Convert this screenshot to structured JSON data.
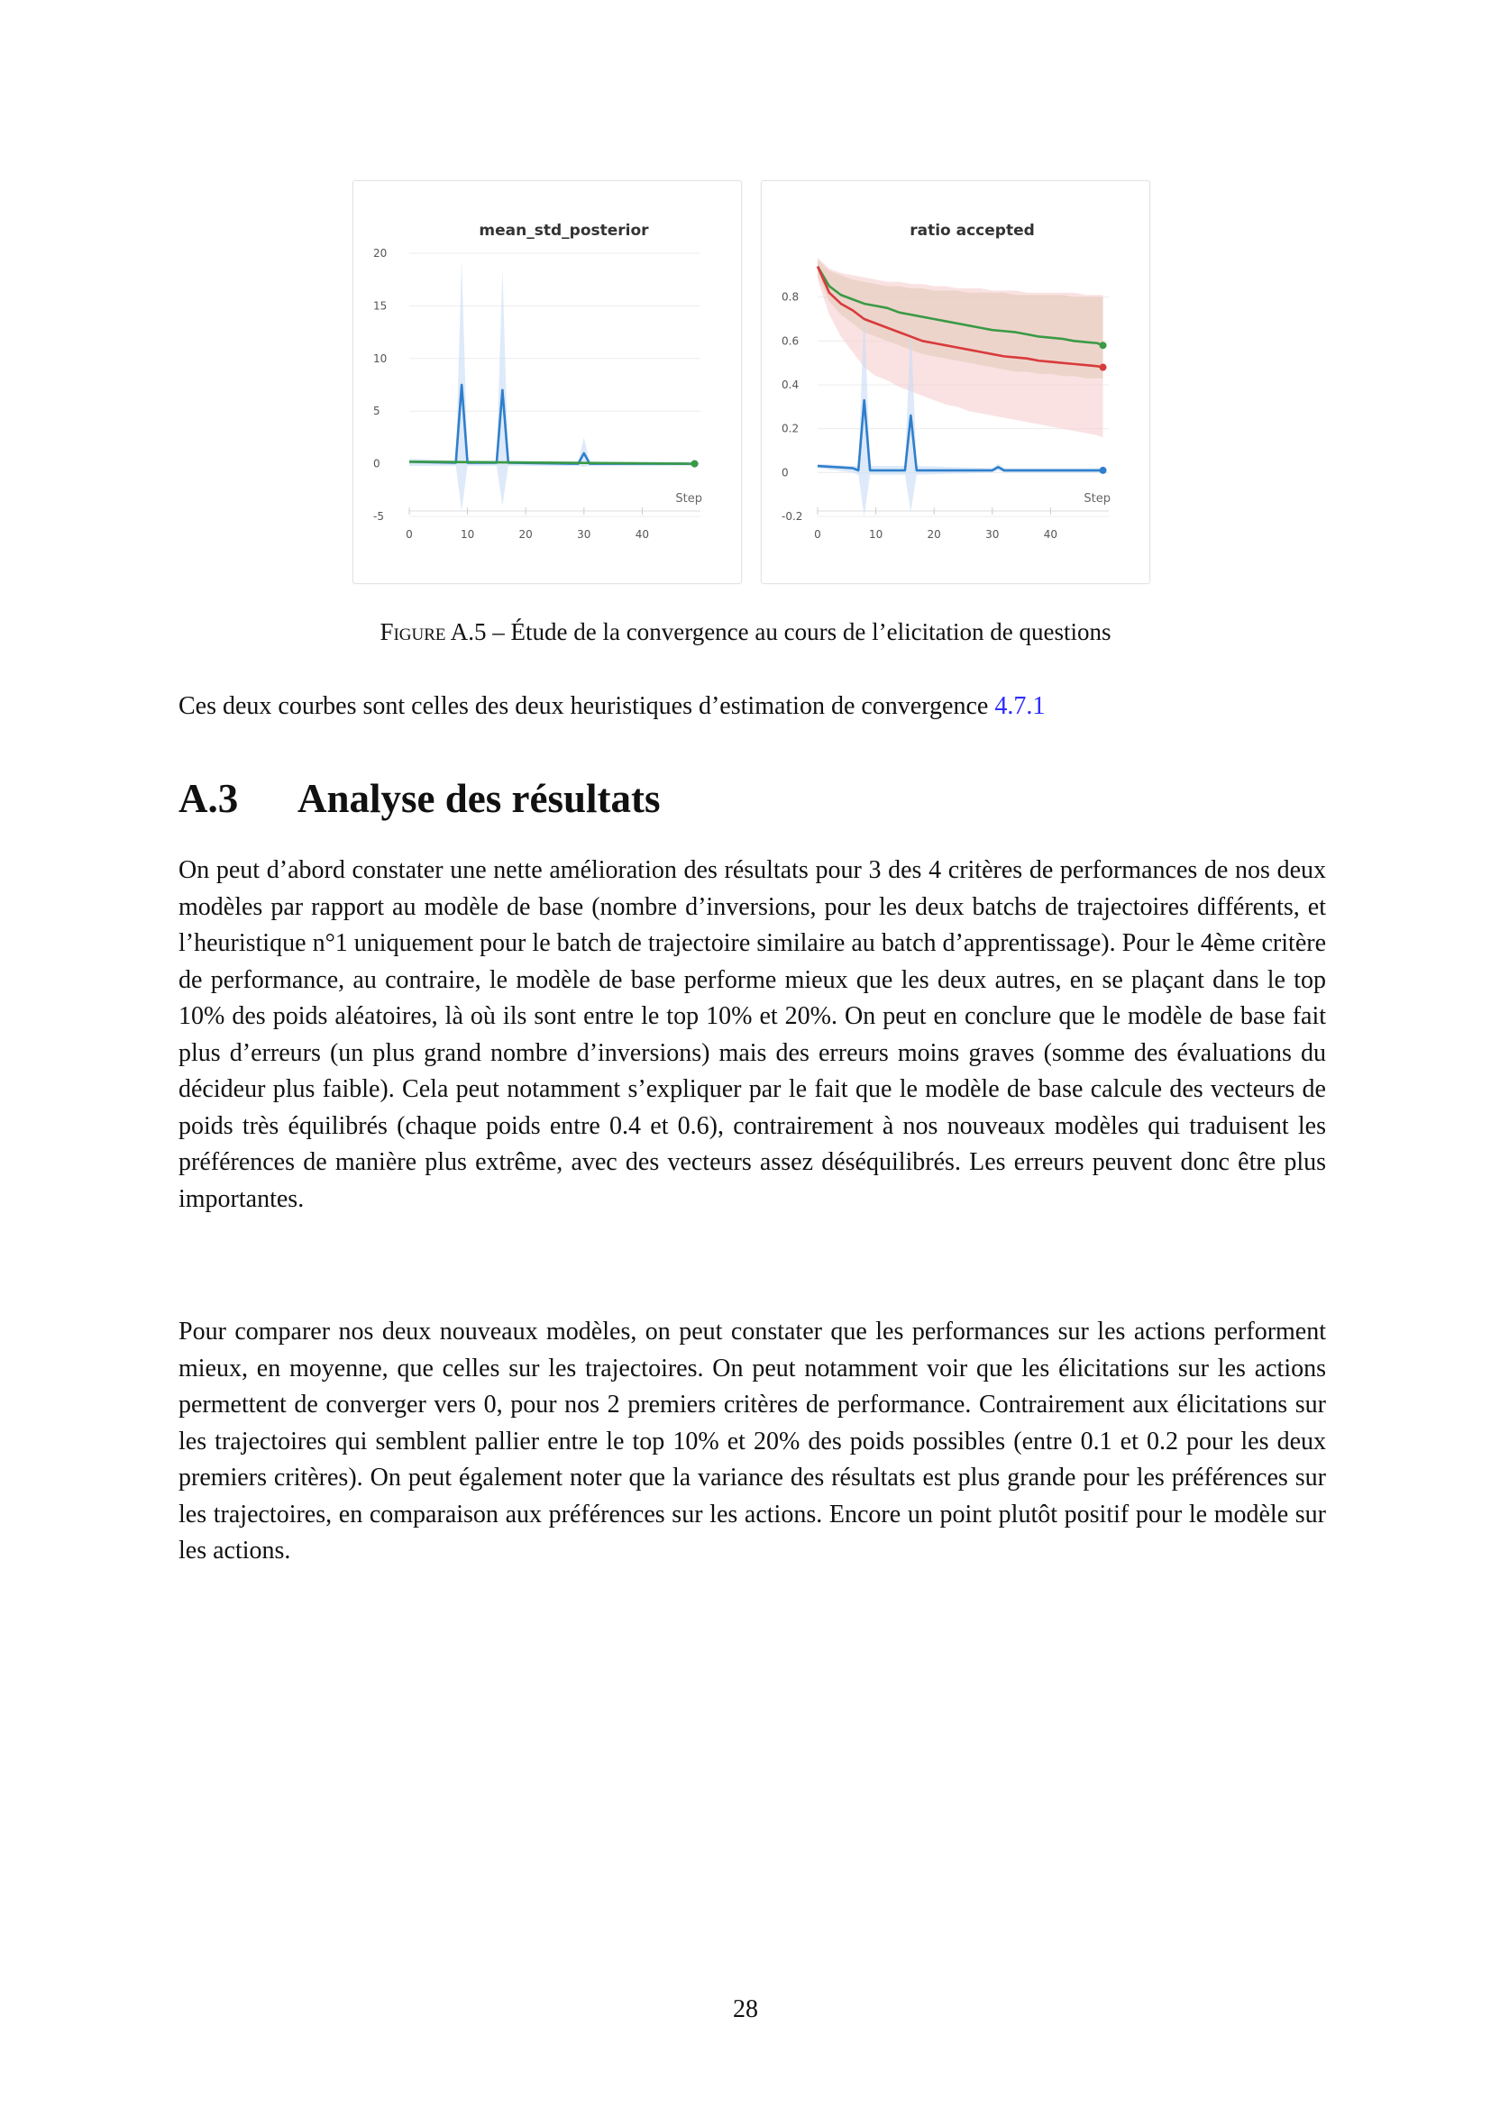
{
  "figure": {
    "caption_label": "Figure A.5",
    "caption_sep": " – ",
    "caption_text": "Étude de la convergence au cours de l’elicitation de questions"
  },
  "chart_data": [
    {
      "type": "line",
      "title": "mean_std_posterior",
      "xlabel": "Step",
      "ylabel": "",
      "xlim": [
        0,
        50
      ],
      "ylim": [
        -5,
        20
      ],
      "xticks": [
        "0",
        "10",
        "20",
        "30",
        "40"
      ],
      "yticks": [
        "-5",
        "0",
        "5",
        "10",
        "15",
        "20"
      ],
      "grid": true,
      "series": [
        {
          "color": "#2f7fcc",
          "x": [
            0,
            8,
            9,
            10,
            15,
            16,
            17,
            29,
            30,
            31,
            49
          ],
          "y": [
            0.2,
            0.1,
            7.5,
            0.1,
            0.1,
            7.0,
            0.1,
            0.0,
            1.0,
            0.0,
            0.0
          ],
          "band_upper": [
            0.5,
            0.3,
            19.5,
            0.3,
            0.3,
            18.5,
            0.3,
            0.2,
            2.5,
            0.2,
            0.2
          ],
          "band_lower": [
            -0.2,
            -0.2,
            -4.5,
            -0.2,
            -0.2,
            -4.0,
            -0.2,
            -0.2,
            -0.3,
            -0.2,
            -0.2
          ],
          "band_color": "#c8dcf5"
        },
        {
          "color": "#3a9a45",
          "x": [
            0,
            49
          ],
          "y": [
            0.2,
            0.0
          ]
        }
      ]
    },
    {
      "type": "line",
      "title": "ratio accepted",
      "xlabel": "Step",
      "ylabel": "",
      "xlim": [
        0,
        50
      ],
      "ylim": [
        -0.2,
        1.0
      ],
      "xticks": [
        "0",
        "10",
        "20",
        "30",
        "40"
      ],
      "yticks": [
        "-0.2",
        "0",
        "0.2",
        "0.4",
        "0.6",
        "0.8"
      ],
      "grid": true,
      "series": [
        {
          "color": "#3a9a45",
          "x": [
            0,
            2,
            4,
            6,
            8,
            10,
            12,
            14,
            16,
            18,
            20,
            22,
            24,
            26,
            28,
            30,
            32,
            34,
            36,
            38,
            40,
            42,
            44,
            46,
            48,
            49
          ],
          "y": [
            0.94,
            0.85,
            0.81,
            0.79,
            0.77,
            0.76,
            0.75,
            0.73,
            0.72,
            0.71,
            0.7,
            0.69,
            0.68,
            0.67,
            0.66,
            0.65,
            0.645,
            0.64,
            0.63,
            0.62,
            0.615,
            0.61,
            0.6,
            0.595,
            0.59,
            0.58
          ],
          "band_upper": [
            0.97,
            0.92,
            0.9,
            0.88,
            0.87,
            0.86,
            0.85,
            0.85,
            0.84,
            0.84,
            0.83,
            0.83,
            0.83,
            0.82,
            0.82,
            0.82,
            0.82,
            0.81,
            0.81,
            0.81,
            0.81,
            0.81,
            0.8,
            0.8,
            0.8,
            0.8
          ],
          "band_lower": [
            0.9,
            0.78,
            0.72,
            0.68,
            0.64,
            0.62,
            0.6,
            0.58,
            0.56,
            0.54,
            0.53,
            0.52,
            0.51,
            0.5,
            0.49,
            0.48,
            0.47,
            0.46,
            0.46,
            0.45,
            0.45,
            0.44,
            0.44,
            0.43,
            0.43,
            0.43
          ],
          "band_color": "#c9c4a0"
        },
        {
          "color": "#d93a3a",
          "x": [
            0,
            2,
            4,
            6,
            8,
            10,
            12,
            14,
            16,
            18,
            20,
            22,
            24,
            26,
            28,
            30,
            32,
            34,
            36,
            38,
            40,
            42,
            44,
            46,
            48,
            49
          ],
          "y": [
            0.94,
            0.82,
            0.77,
            0.74,
            0.7,
            0.68,
            0.66,
            0.64,
            0.62,
            0.6,
            0.59,
            0.58,
            0.57,
            0.56,
            0.55,
            0.54,
            0.53,
            0.525,
            0.52,
            0.51,
            0.505,
            0.5,
            0.495,
            0.49,
            0.485,
            0.48
          ],
          "band_upper": [
            0.98,
            0.93,
            0.91,
            0.9,
            0.89,
            0.88,
            0.87,
            0.87,
            0.86,
            0.86,
            0.85,
            0.85,
            0.84,
            0.84,
            0.84,
            0.83,
            0.83,
            0.83,
            0.82,
            0.82,
            0.82,
            0.82,
            0.82,
            0.81,
            0.81,
            0.81
          ],
          "band_lower": [
            0.88,
            0.72,
            0.62,
            0.55,
            0.48,
            0.44,
            0.42,
            0.39,
            0.37,
            0.35,
            0.33,
            0.31,
            0.3,
            0.28,
            0.27,
            0.26,
            0.25,
            0.24,
            0.23,
            0.22,
            0.21,
            0.2,
            0.19,
            0.18,
            0.17,
            0.16
          ],
          "band_color": "#f7cfcf"
        },
        {
          "color": "#2f7fcc",
          "x": [
            0,
            6,
            7,
            8,
            9,
            14,
            15,
            16,
            17,
            30,
            31,
            32,
            49
          ],
          "y": [
            0.03,
            0.02,
            0.01,
            0.33,
            0.01,
            0.01,
            0.01,
            0.26,
            0.01,
            0.01,
            0.025,
            0.01,
            0.01
          ],
          "band_upper": [
            0.04,
            0.03,
            0.03,
            0.75,
            0.03,
            0.03,
            0.03,
            0.69,
            0.03,
            0.02,
            0.04,
            0.02,
            0.02
          ],
          "band_lower": [
            0.02,
            0.0,
            -0.01,
            -0.2,
            -0.01,
            -0.01,
            -0.01,
            -0.18,
            -0.01,
            0.0,
            0.01,
            0.0,
            0.0
          ],
          "band_color": "#c8dcf5"
        }
      ]
    }
  ],
  "text": {
    "p0_text": "Ces deux courbes sont celles des deux heuristiques d’estimation de convergence ",
    "p0_ref": "4.7.1",
    "section_number": "A.3",
    "section_title": "Analyse des résultats",
    "p1": "On peut d’abord constater une nette amélioration des résultats pour 3 des 4 critères de performances de nos deux modèles par rapport au modèle de base (nombre d’inversions, pour les deux batchs de trajectoires différents, et l’heuristique n°1 uniquement pour le batch de trajectoire similaire au batch d’apprentissage). Pour le 4ème critère de performance, au contraire, le modèle de base performe mieux que les deux autres, en se plaçant dans le top 10% des poids aléatoires, là où ils sont entre le top 10% et 20%. On peut en conclure que le modèle de base fait plus d’erreurs (un plus grand nombre d’inversions) mais des erreurs moins graves (somme des évaluations du décideur plus faible). Cela peut notamment s’expliquer par le fait que le modèle de base calcule des vecteurs de poids très équilibrés (chaque poids entre 0.4 et 0.6), contrairement à nos nouveaux modèles qui traduisent les préférences de manière plus extrême, avec des vecteurs assez déséquilibrés. Les erreurs peuvent donc être plus importantes.",
    "p2": "Pour comparer nos deux nouveaux modèles, on peut constater que les performances sur les actions performent mieux, en moyenne, que celles sur les trajectoires. On peut notamment voir que les élicitations sur les actions permettent de converger vers 0, pour nos 2 premiers critères de performance. Contrairement aux élicitations sur les trajectoires qui semblent pallier entre le top 10% et 20% des poids possibles (entre 0.1 et 0.2 pour les deux premiers critères). On peut également noter que la variance des résultats est plus grande pour les préférences sur les trajectoires, en comparaison aux préférences sur les actions. Encore un point plutôt positif pour le modèle sur les actions.",
    "page_number": "28"
  }
}
